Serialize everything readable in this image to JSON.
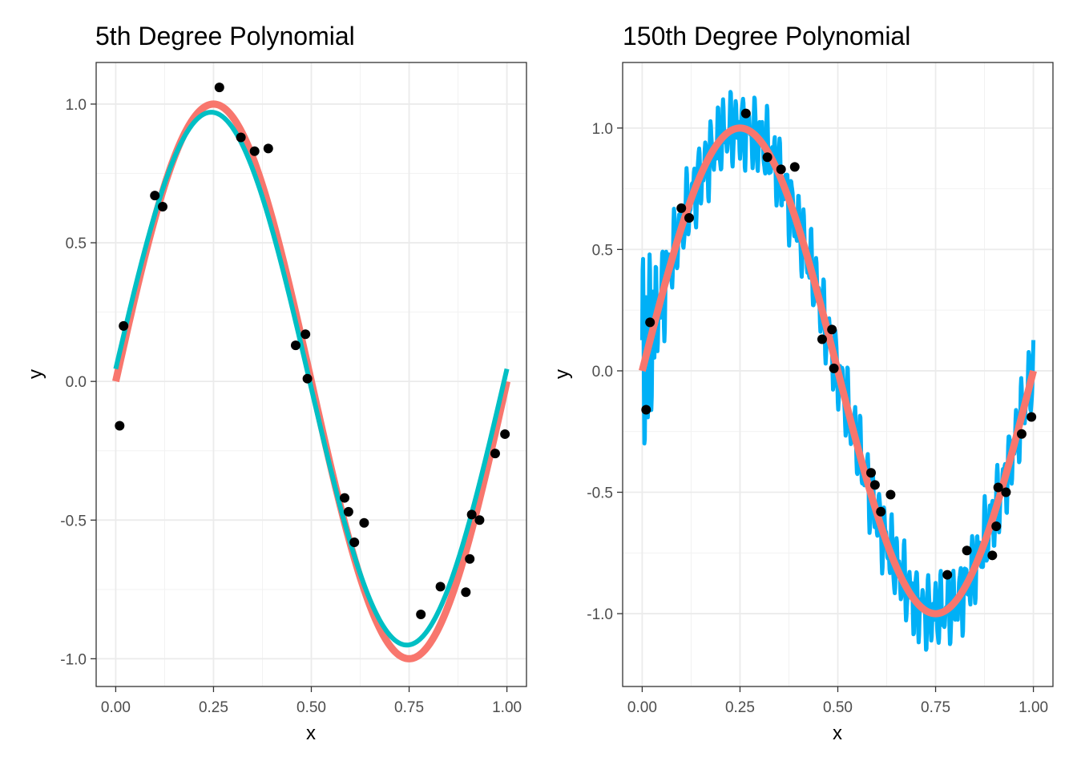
{
  "chart_data": [
    {
      "type": "scatter",
      "title": "5th Degree Polynomial",
      "xlabel": "x",
      "ylabel": "y",
      "xlim": [
        -0.05,
        1.05
      ],
      "ylim": [
        -1.1,
        1.15
      ],
      "xticks": [
        "0.00",
        "0.25",
        "0.50",
        "0.75",
        "1.00"
      ],
      "yticks": [
        "-1.0",
        "-0.5",
        "0.0",
        "0.5",
        "1.0"
      ],
      "points": {
        "x": [
          0.01,
          0.02,
          0.1,
          0.12,
          0.265,
          0.32,
          0.355,
          0.39,
          0.46,
          0.485,
          0.49,
          0.585,
          0.595,
          0.61,
          0.635,
          0.78,
          0.83,
          0.895,
          0.905,
          0.91,
          0.93,
          0.97,
          0.995
        ],
        "y": [
          -0.16,
          0.2,
          0.67,
          0.63,
          1.06,
          0.88,
          0.83,
          0.84,
          0.13,
          0.17,
          0.01,
          -0.42,
          -0.47,
          -0.58,
          -0.51,
          -0.84,
          -0.74,
          -0.76,
          -0.64,
          -0.48,
          -0.5,
          -0.26,
          -0.19
        ]
      },
      "series": [
        {
          "color": "#F8766D",
          "kind": "true-function",
          "x": [
            0.0,
            1.0
          ]
        },
        {
          "color": "#00BFC4",
          "kind": "degree-5-fit",
          "x": [
            0.0,
            1.0
          ]
        }
      ]
    },
    {
      "type": "scatter",
      "title": "150th Degree Polynomial",
      "xlabel": "x",
      "ylabel": "y",
      "xlim": [
        -0.05,
        1.05
      ],
      "ylim": [
        -1.3,
        1.27
      ],
      "xticks": [
        "0.00",
        "0.25",
        "0.50",
        "0.75",
        "1.00"
      ],
      "yticks": [
        "-1.0",
        "-0.5",
        "0.0",
        "0.5",
        "1.0"
      ],
      "points": {
        "x": [
          0.01,
          0.02,
          0.1,
          0.12,
          0.265,
          0.32,
          0.355,
          0.39,
          0.46,
          0.485,
          0.49,
          0.585,
          0.595,
          0.61,
          0.635,
          0.78,
          0.83,
          0.895,
          0.905,
          0.91,
          0.93,
          0.97,
          0.995
        ],
        "y": [
          -0.16,
          0.2,
          0.67,
          0.63,
          1.06,
          0.88,
          0.83,
          0.84,
          0.13,
          0.17,
          0.01,
          -0.42,
          -0.47,
          -0.58,
          -0.51,
          -0.84,
          -0.74,
          -0.76,
          -0.64,
          -0.48,
          -0.5,
          -0.26,
          -0.19
        ]
      },
      "series": [
        {
          "color": "#00B0F6",
          "kind": "degree-150-fit",
          "x": [
            0.0,
            1.0
          ]
        },
        {
          "color": "#F8766D",
          "kind": "true-function",
          "x": [
            0.0,
            1.0
          ]
        }
      ]
    }
  ]
}
